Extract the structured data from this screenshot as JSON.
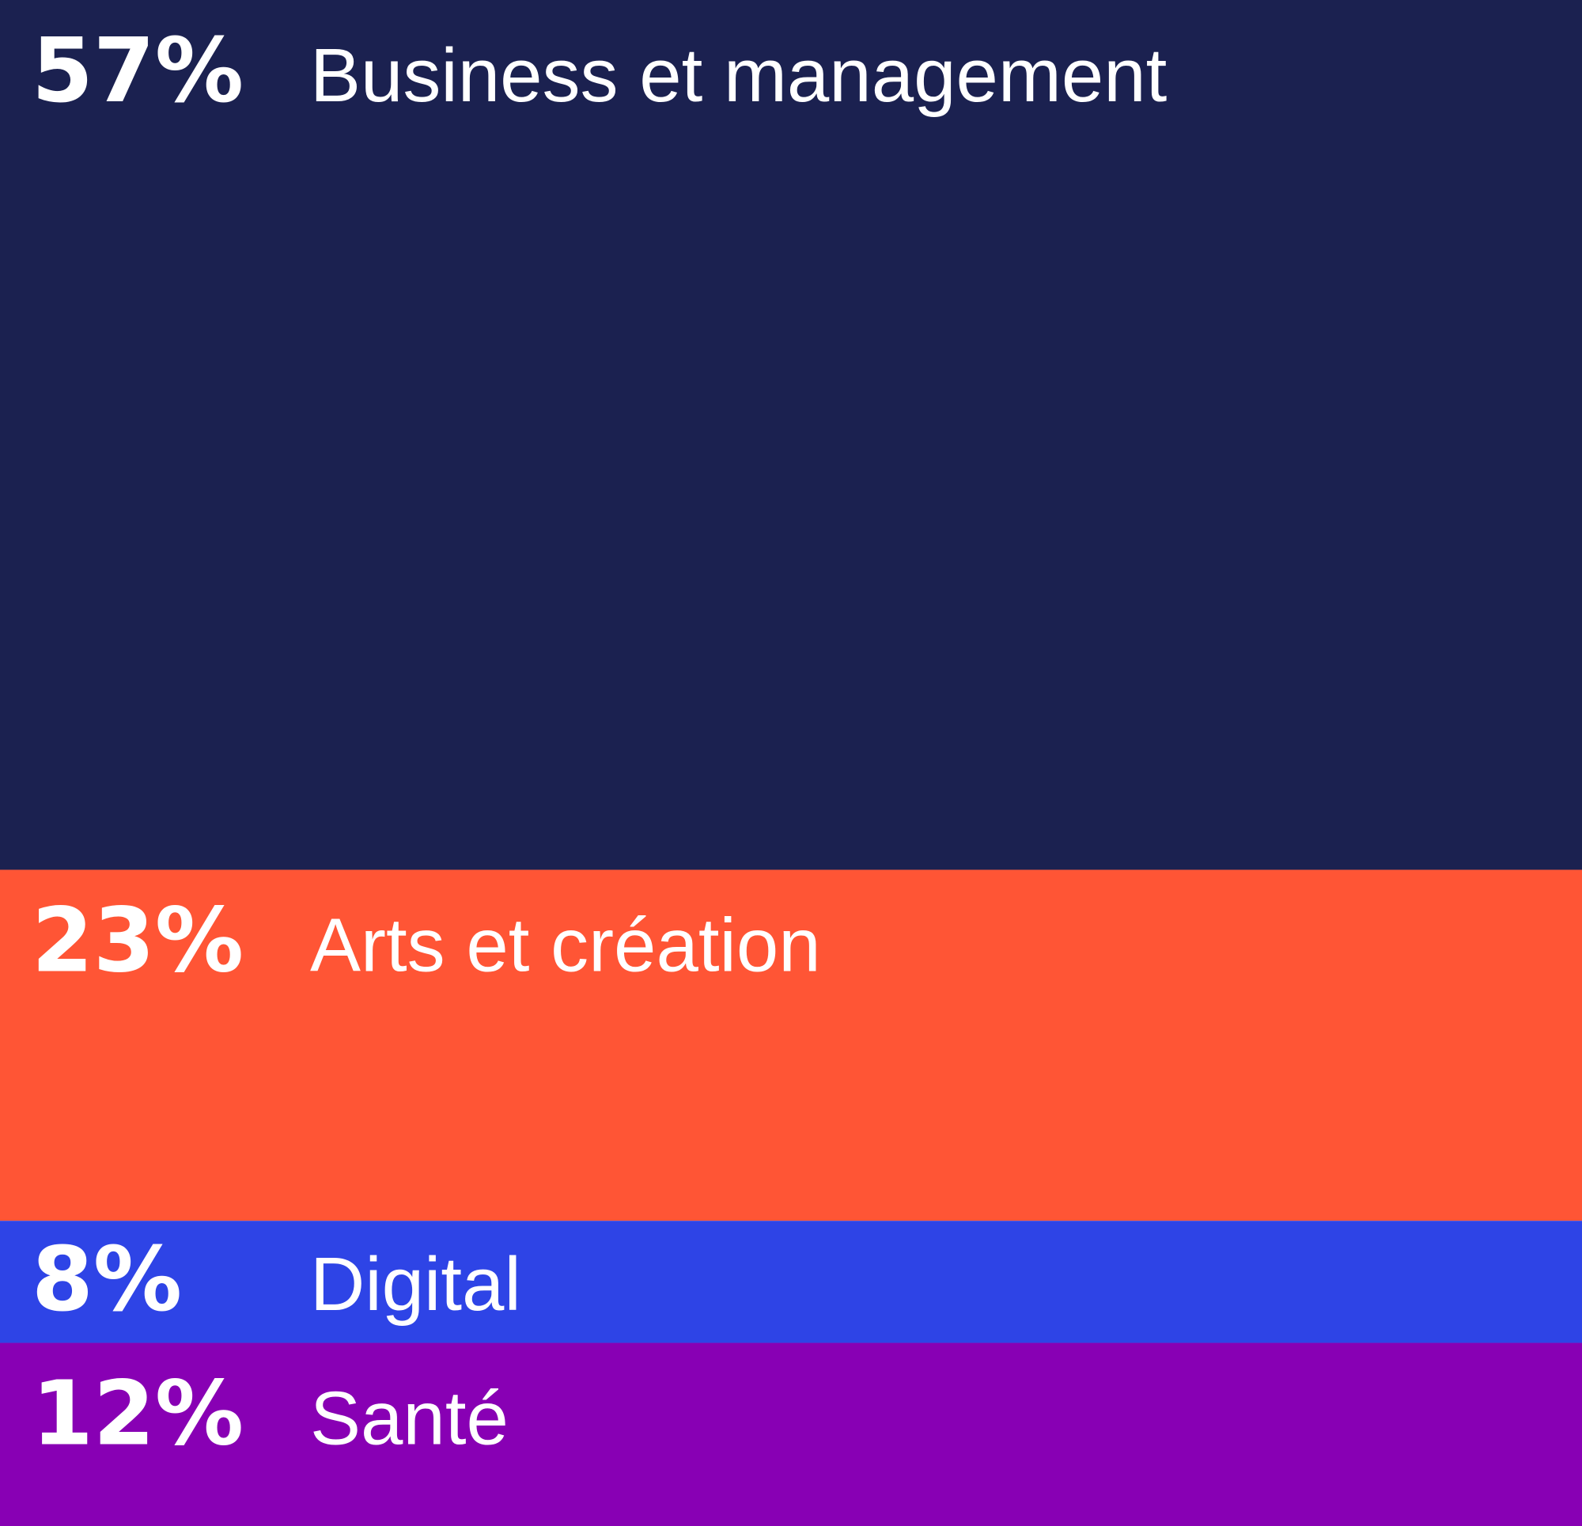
{
  "chart_data": {
    "type": "bar",
    "categories": [
      "Business et management",
      "Arts et création",
      "Digital",
      "Santé"
    ],
    "values": [
      57,
      23,
      8,
      12
    ],
    "value_labels": [
      "57%",
      "23%",
      "8%",
      "12%"
    ],
    "colors": [
      "#1b2150",
      "#ff5535",
      "#2e44e6",
      "#8800b4"
    ]
  }
}
